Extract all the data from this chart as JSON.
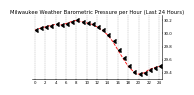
{
  "title": "Milwaukee Weather Barometric Pressure per Hour (Last 24 Hours)",
  "x_values": [
    0,
    1,
    2,
    3,
    4,
    5,
    6,
    7,
    8,
    9,
    10,
    11,
    12,
    13,
    14,
    15,
    16,
    17,
    18,
    19,
    20,
    21,
    22,
    23,
    24
  ],
  "y_values": [
    30.05,
    30.08,
    30.1,
    30.12,
    30.14,
    30.13,
    30.15,
    30.18,
    30.2,
    30.18,
    30.16,
    30.14,
    30.1,
    30.05,
    29.98,
    29.88,
    29.75,
    29.62,
    29.5,
    29.42,
    29.38,
    29.4,
    29.45,
    29.48,
    29.5
  ],
  "line_color": "#ff0000",
  "marker_color": "#000000",
  "background_color": "#ffffff",
  "grid_color": "#999999",
  "ylim": [
    29.3,
    30.28
  ],
  "xlim": [
    -0.5,
    24.5
  ],
  "ytick_values": [
    29.4,
    29.6,
    29.8,
    30.0,
    30.2
  ],
  "xtick_values": [
    0,
    2,
    4,
    6,
    8,
    10,
    12,
    14,
    16,
    18,
    20,
    22,
    24
  ],
  "title_fontsize": 3.8,
  "tick_fontsize": 2.8,
  "line_width": 0.6,
  "marker_size": 1.8,
  "arrow_size": 2.5
}
